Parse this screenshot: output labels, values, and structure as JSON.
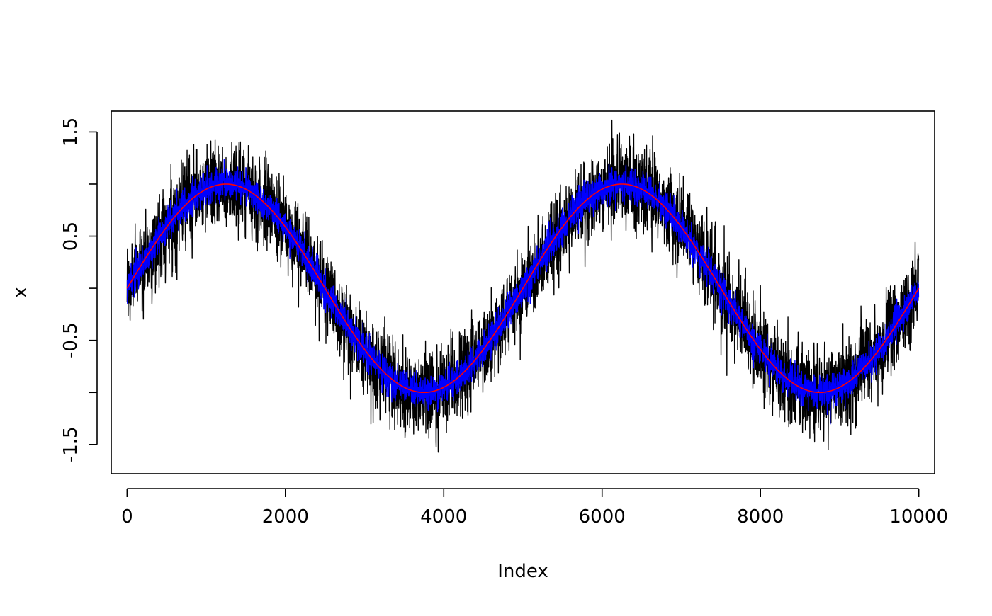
{
  "chart_data": {
    "type": "line",
    "title": "",
    "xlabel": "Index",
    "ylabel": "x",
    "xlim": [
      -200,
      10200
    ],
    "ylim": [
      -1.78,
      1.7
    ],
    "x_ticks": [
      0,
      2000,
      4000,
      6000,
      8000,
      10000
    ],
    "x_tick_labels": [
      "0",
      "2000",
      "4000",
      "6000",
      "8000",
      "10000"
    ],
    "y_ticks": [
      -1.5,
      -1.0,
      -0.5,
      0.0,
      0.5,
      1.0,
      1.5
    ],
    "y_tick_labels": [
      "-1.5",
      "",
      "-0.5",
      "",
      "0.5",
      "",
      "1.5"
    ],
    "grid": false,
    "legend": "none",
    "series": [
      {
        "style": "noisy-line",
        "color": "#000000",
        "underlying": "sin(2*pi*index/5000)",
        "n_points": 10000,
        "noise_sd": 0.2
      },
      {
        "style": "noisy-line",
        "color": "#0000ff",
        "underlying": "sin(2*pi*index/5000)",
        "n_points": 10000,
        "noise_sd": 0.08
      },
      {
        "style": "smooth-line",
        "color": "#ff0000",
        "underlying": "sin(2*pi*index/5000)",
        "x": [
          0,
          1250,
          2500,
          3750,
          5000,
          6250,
          7500,
          8750,
          10000
        ],
        "y": [
          0,
          1,
          0,
          -1,
          0,
          1,
          0,
          -1,
          0
        ]
      }
    ]
  }
}
